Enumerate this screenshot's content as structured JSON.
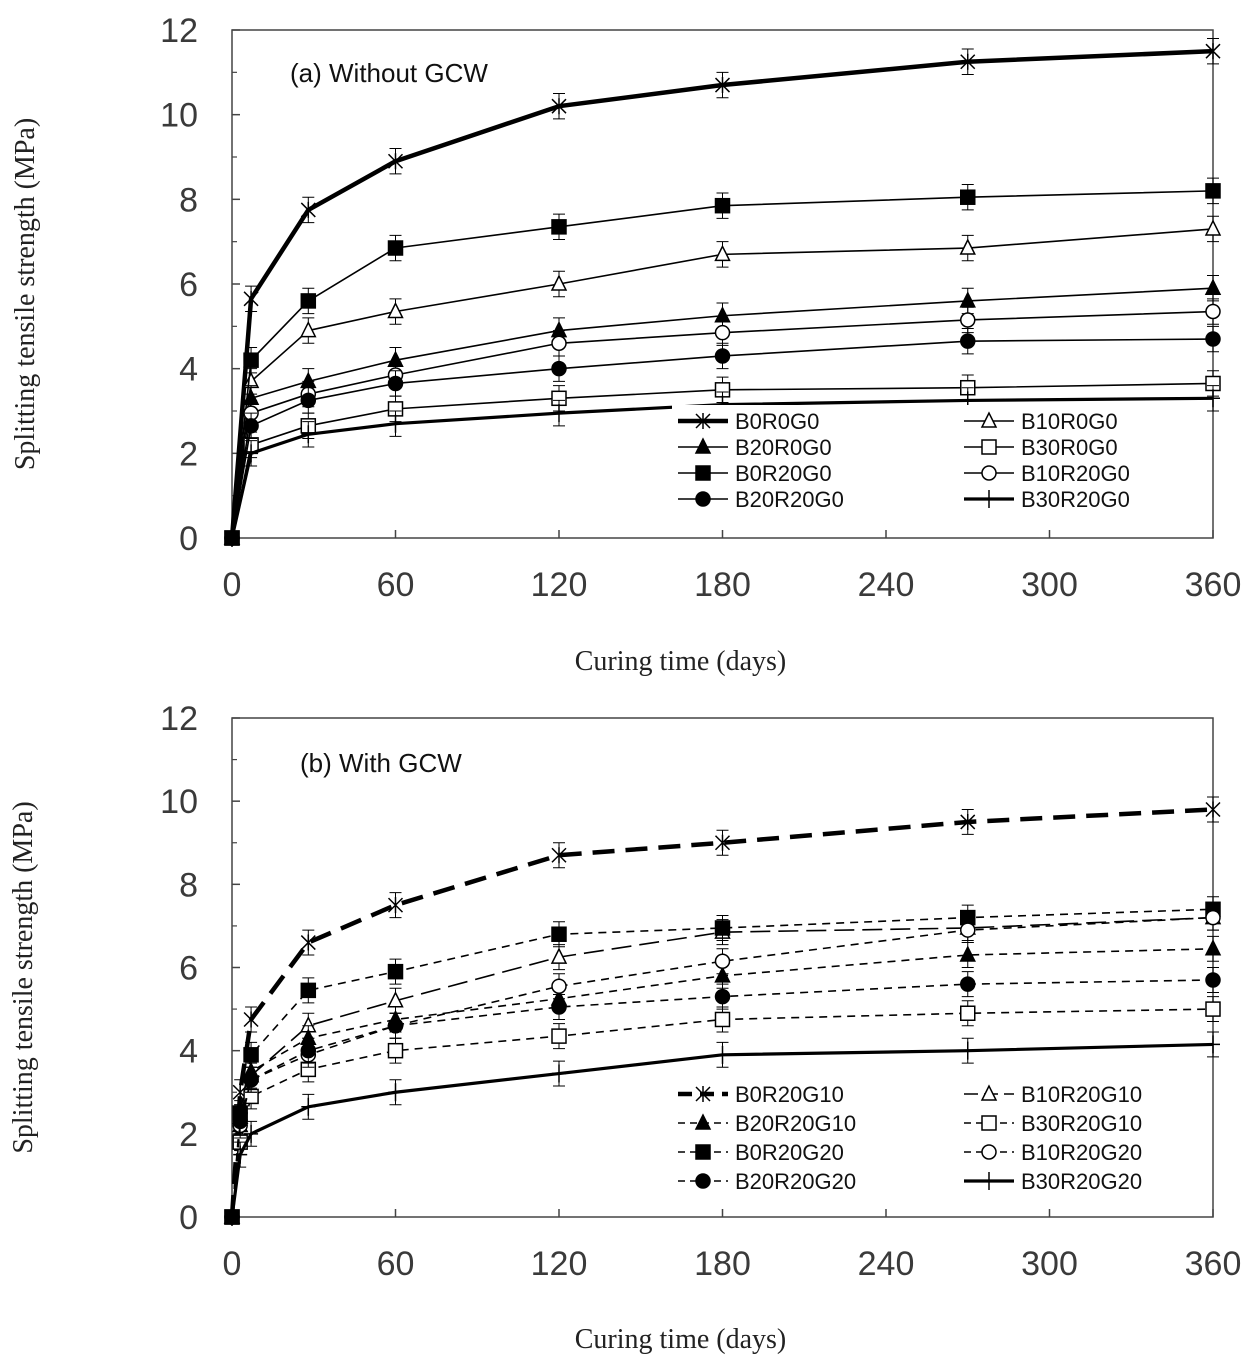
{
  "chart_data": [
    {
      "type": "line",
      "title": "(a) Without GCW",
      "xlabel": "Curing time (days)",
      "ylabel": "Splitting tensile strength (MPa)",
      "xlim": [
        0,
        360
      ],
      "ylim": [
        0,
        12
      ],
      "xticks": [
        0,
        60,
        120,
        180,
        240,
        300,
        360
      ],
      "yticks": [
        0,
        2,
        4,
        6,
        8,
        10,
        12
      ],
      "grid": false,
      "legend_position": "bottom-right",
      "x": [
        0,
        7,
        28,
        60,
        120,
        180,
        270,
        360
      ],
      "series": [
        {
          "name": "B0R0G0",
          "marker": "star",
          "dash": "solid",
          "width": 4.5,
          "values": [
            0,
            5.65,
            7.75,
            8.9,
            10.2,
            10.7,
            11.25,
            11.5
          ]
        },
        {
          "name": "B10R0G0",
          "marker": "triangle-open",
          "dash": "solid",
          "width": 1.6,
          "values": [
            0,
            3.7,
            4.9,
            5.35,
            6.0,
            6.7,
            6.85,
            7.3
          ]
        },
        {
          "name": "B20R0G0",
          "marker": "triangle-filled",
          "dash": "solid",
          "width": 1.6,
          "values": [
            0,
            3.3,
            3.7,
            4.2,
            4.9,
            5.25,
            5.6,
            5.9
          ]
        },
        {
          "name": "B30R0G0",
          "marker": "square-open",
          "dash": "solid",
          "width": 1.6,
          "values": [
            0,
            2.2,
            2.65,
            3.05,
            3.3,
            3.5,
            3.55,
            3.65
          ]
        },
        {
          "name": "B0R20G0",
          "marker": "square-filled",
          "dash": "solid",
          "width": 1.6,
          "values": [
            0,
            4.2,
            5.6,
            6.85,
            7.35,
            7.85,
            8.05,
            8.2
          ]
        },
        {
          "name": "B10R20G0",
          "marker": "circle-open",
          "dash": "solid",
          "width": 1.6,
          "values": [
            0,
            2.95,
            3.4,
            3.85,
            4.6,
            4.85,
            5.15,
            5.35
          ]
        },
        {
          "name": "B20R20G0",
          "marker": "circle-filled",
          "dash": "solid",
          "width": 1.6,
          "values": [
            0,
            2.65,
            3.25,
            3.65,
            4.0,
            4.3,
            4.65,
            4.7
          ]
        },
        {
          "name": "B30R20G0",
          "marker": "plus",
          "dash": "solid",
          "width": 3.2,
          "values": [
            0,
            2.0,
            2.45,
            2.7,
            2.95,
            3.15,
            3.25,
            3.3
          ]
        }
      ]
    },
    {
      "type": "line",
      "title": "(b) With GCW",
      "xlabel": "Curing time (days)",
      "ylabel": "Splitting tensile strength (MPa)",
      "xlim": [
        0,
        360
      ],
      "ylim": [
        0,
        12
      ],
      "xticks": [
        0,
        60,
        120,
        180,
        240,
        300,
        360
      ],
      "yticks": [
        0,
        2,
        4,
        6,
        8,
        10,
        12
      ],
      "grid": false,
      "legend_position": "bottom-right",
      "x": [
        0,
        3,
        7,
        28,
        60,
        120,
        180,
        270,
        360
      ],
      "series": [
        {
          "name": "B0R20G10",
          "marker": "star",
          "dash": "heavy-dash",
          "width": 4.5,
          "values": [
            0,
            3.0,
            4.75,
            6.6,
            7.5,
            8.7,
            9.0,
            9.5,
            9.8
          ]
        },
        {
          "name": "B10R20G10",
          "marker": "triangle-open",
          "dash": "long-dash",
          "width": 1.6,
          "values": [
            0,
            2.2,
            3.4,
            4.6,
            5.2,
            6.25,
            6.85,
            6.95,
            7.2
          ]
        },
        {
          "name": "B20R20G10",
          "marker": "triangle-filled",
          "dash": "short-dash",
          "width": 1.6,
          "values": [
            0,
            2.4,
            3.5,
            4.3,
            4.75,
            5.25,
            5.8,
            6.3,
            6.45
          ]
        },
        {
          "name": "B30R20G10",
          "marker": "square-open",
          "dash": "short-dash",
          "width": 1.6,
          "values": [
            0,
            1.8,
            2.9,
            3.55,
            4.0,
            4.35,
            4.75,
            4.9,
            5.0
          ]
        },
        {
          "name": "B0R20G20",
          "marker": "square-filled",
          "dash": "short-dash",
          "width": 1.6,
          "values": [
            0,
            2.5,
            3.9,
            5.45,
            5.9,
            6.8,
            6.95,
            7.2,
            7.4
          ]
        },
        {
          "name": "B10R20G20",
          "marker": "circle-open",
          "dash": "short-dash",
          "width": 1.6,
          "values": [
            0,
            2.2,
            3.3,
            3.9,
            4.6,
            5.55,
            6.15,
            6.9,
            7.2
          ]
        },
        {
          "name": "B20R20G20",
          "marker": "circle-filled",
          "dash": "short-dash",
          "width": 1.6,
          "values": [
            0,
            2.3,
            3.3,
            4.0,
            4.6,
            5.05,
            5.3,
            5.6,
            5.7
          ]
        },
        {
          "name": "B30R20G20",
          "marker": "plus",
          "dash": "solid",
          "width": 3.2,
          "values": [
            0,
            1.5,
            2.0,
            2.65,
            3.0,
            3.45,
            3.9,
            4.0,
            4.15
          ]
        }
      ]
    }
  ]
}
